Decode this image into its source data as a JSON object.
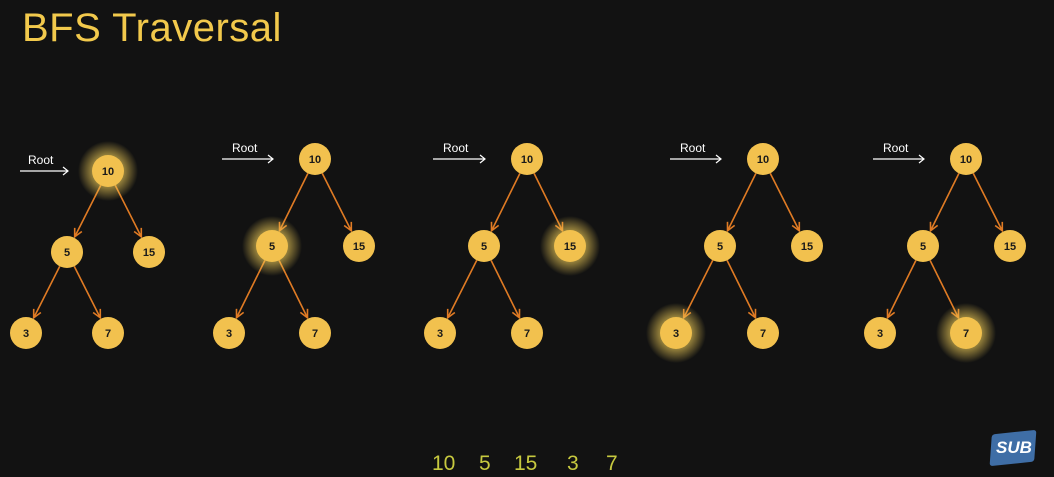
{
  "title": "BFS Traversal",
  "root_label": "Root",
  "steps": [
    {
      "highlighted": "10"
    },
    {
      "highlighted": "5"
    },
    {
      "highlighted": "15"
    },
    {
      "highlighted": "3"
    },
    {
      "highlighted": "7"
    }
  ],
  "tree": {
    "nodes": [
      "10",
      "5",
      "15",
      "3",
      "7"
    ],
    "edges": [
      [
        "10",
        "5"
      ],
      [
        "10",
        "15"
      ],
      [
        "5",
        "3"
      ],
      [
        "5",
        "7"
      ]
    ]
  },
  "traversal_order": [
    "10",
    "5",
    "15",
    "3",
    "7"
  ],
  "logo_text": "SUB",
  "colors": {
    "background": "#121212",
    "title": "#f2c94c",
    "node": "#f2c14e",
    "edge": "#e07b24",
    "glow": "#f7d35a",
    "order_text": "#c7c93f"
  }
}
